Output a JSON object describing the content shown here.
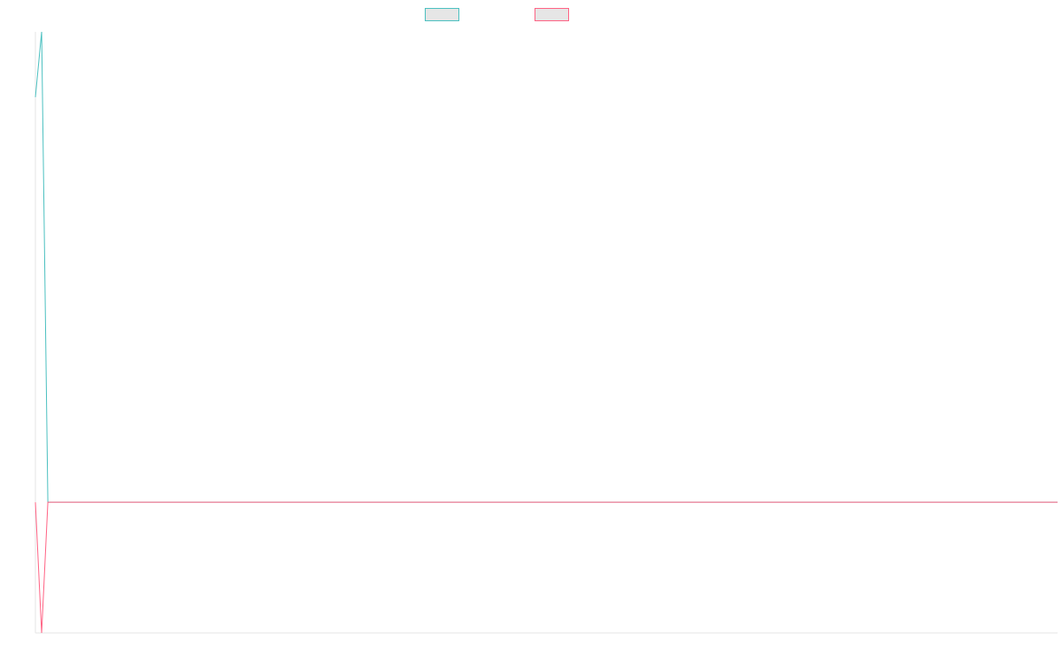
{
  "chart_data": {
    "type": "line",
    "title": "",
    "xlabel": "",
    "ylabel": "",
    "x": [
      0,
      1,
      2,
      3,
      4,
      5,
      6,
      7,
      8,
      9,
      10,
      11,
      12,
      13,
      14,
      15,
      16,
      17,
      18,
      19,
      20,
      21,
      22,
      23,
      24,
      25,
      26,
      27,
      28,
      29,
      30,
      31,
      32,
      33,
      34,
      35,
      36,
      37,
      38,
      39,
      40,
      41,
      42,
      43,
      44,
      45,
      46,
      47,
      48,
      49,
      50,
      51,
      52,
      53,
      54,
      55,
      56,
      57,
      58,
      59,
      60,
      61,
      62,
      63,
      64,
      65,
      66,
      67,
      68,
      69,
      70,
      71,
      72,
      73,
      74,
      75,
      76,
      77,
      78,
      79,
      80,
      81,
      82,
      83,
      84,
      85,
      86,
      87,
      88,
      89,
      90,
      91,
      92,
      93,
      94,
      95,
      96,
      97,
      98,
      99,
      100,
      101,
      102,
      103,
      104,
      105,
      106,
      107,
      108,
      109,
      110,
      111,
      112,
      113,
      114,
      115,
      116,
      117,
      118,
      119,
      120,
      121,
      122,
      123,
      124,
      125,
      126,
      127,
      128,
      129,
      130,
      131,
      132,
      133,
      134,
      135,
      136,
      137,
      138,
      139,
      140,
      141,
      142,
      143,
      144,
      145,
      146,
      147,
      148,
      149,
      150,
      151,
      152,
      153,
      154,
      155,
      156,
      157,
      158,
      159,
      160,
      161,
      162,
      163,
      164
    ],
    "series": [
      {
        "name": "",
        "color": "#4bc0c0",
        "values": [
          3.6,
          4.1,
          0.5,
          0.5,
          0.5,
          0.5,
          0.5,
          0.5,
          0.5,
          0.5,
          0.5,
          0.5,
          0.5,
          0.5,
          0.5,
          0.5,
          0.5,
          0.5,
          0.5,
          0.5,
          0.5,
          0.5,
          0.5,
          0.5,
          0.5,
          0.5,
          0.5,
          0.5,
          0.5,
          0.5,
          0.5,
          0.5,
          0.5,
          0.5,
          0.5,
          0.5,
          0.5,
          0.5,
          0.5,
          0.5,
          0.5,
          0.5,
          0.5,
          0.5,
          0.5,
          0.5,
          0.5,
          0.5,
          0.5,
          0.5,
          0.5,
          0.5,
          0.5,
          0.5,
          0.5,
          0.5,
          0.5,
          0.5,
          0.5,
          0.5,
          0.5,
          0.5,
          0.5,
          0.5,
          0.5,
          0.5,
          0.5,
          0.5,
          0.5,
          0.5,
          0.5,
          0.5,
          0.5,
          0.5,
          0.5,
          0.5,
          0.5,
          0.5,
          0.5,
          0.5,
          0.5,
          0.5,
          0.5,
          0.5,
          0.5,
          0.5,
          0.5,
          0.5,
          0.5,
          0.5,
          0.5,
          0.5,
          0.5,
          0.5,
          0.5,
          0.5,
          0.5,
          0.5,
          0.5,
          0.5,
          0.5,
          0.5,
          0.5,
          0.5,
          0.5,
          0.5,
          0.5,
          0.5,
          0.5,
          0.5,
          0.5,
          0.5,
          0.5,
          0.5,
          0.5,
          0.5,
          0.5,
          0.5,
          0.5,
          0.5,
          0.5,
          0.5,
          0.5,
          0.5,
          0.5,
          0.5,
          0.5,
          0.5,
          0.5,
          0.5,
          0.5,
          0.5,
          0.5,
          0.5,
          0.5,
          0.5,
          0.5,
          0.5,
          0.5,
          0.5,
          0.5,
          0.5,
          0.5,
          0.5,
          0.5,
          0.5,
          0.5,
          0.5,
          0.5,
          0.5,
          0.5,
          0.5,
          0.5,
          0.5,
          0.5,
          0.5,
          0.5,
          0.5,
          0.5,
          0.5,
          0.5,
          0.5,
          0.5,
          0.5,
          0.5
        ]
      },
      {
        "name": "",
        "color": "#ff6384",
        "values": [
          0.5,
          -0.5,
          0.5,
          0.5,
          0.5,
          0.5,
          0.5,
          0.5,
          0.5,
          0.5,
          0.5,
          0.5,
          0.5,
          0.5,
          0.5,
          0.5,
          0.5,
          0.5,
          0.5,
          0.5,
          0.5,
          0.5,
          0.5,
          0.5,
          0.5,
          0.5,
          0.5,
          0.5,
          0.5,
          0.5,
          0.5,
          0.5,
          0.5,
          0.5,
          0.5,
          0.5,
          0.5,
          0.5,
          0.5,
          0.5,
          0.5,
          0.5,
          0.5,
          0.5,
          0.5,
          0.5,
          0.5,
          0.5,
          0.5,
          0.5,
          0.5,
          0.5,
          0.5,
          0.5,
          0.5,
          0.5,
          0.5,
          0.5,
          0.5,
          0.5,
          0.5,
          0.5,
          0.5,
          0.5,
          0.5,
          0.5,
          0.5,
          0.5,
          0.5,
          0.5,
          0.5,
          0.5,
          0.5,
          0.5,
          0.5,
          0.5,
          0.5,
          0.5,
          0.5,
          0.5,
          0.5,
          0.5,
          0.5,
          0.5,
          0.5,
          0.5,
          0.5,
          0.5,
          0.5,
          0.5,
          0.5,
          0.5,
          0.5,
          0.5,
          0.5,
          0.5,
          0.5,
          0.5,
          0.5,
          0.5,
          0.5,
          0.5,
          0.5,
          0.5,
          0.5,
          0.5,
          0.5,
          0.5,
          0.5,
          0.5,
          0.5,
          0.5,
          0.5,
          0.5,
          0.5,
          0.5,
          0.5,
          0.5,
          0.5,
          0.5,
          0.5,
          0.5,
          0.5,
          0.5,
          0.5,
          0.5,
          0.5,
          0.5,
          0.5,
          0.5,
          0.5,
          0.5,
          0.5,
          0.5,
          0.5,
          0.5,
          0.5,
          0.5,
          0.5,
          0.5,
          0.5,
          0.5,
          0.5,
          0.5,
          0.5,
          0.5,
          0.5,
          0.5,
          0.5,
          0.5,
          0.5,
          0.5,
          0.5,
          0.5,
          0.5,
          0.5,
          0.5,
          0.5,
          0.5,
          0.5,
          0.5,
          0.5,
          0.5,
          0.5,
          0.5
        ]
      }
    ],
    "xlim": [
      0,
      164
    ],
    "ylim": [
      -0.5,
      4.1
    ],
    "grid": false,
    "legend": "top-center",
    "axis_color": "#e6e6e6"
  }
}
